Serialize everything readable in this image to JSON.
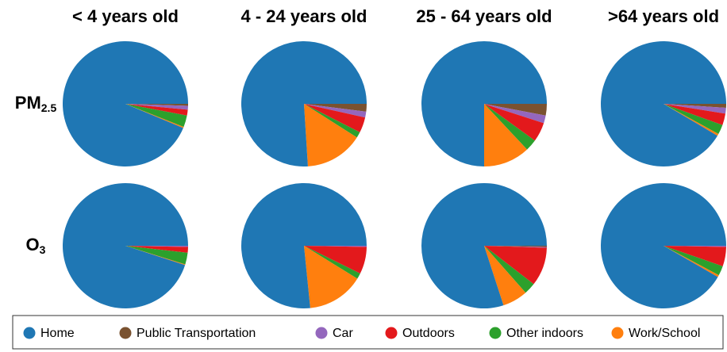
{
  "chart_data": {
    "type": "pie",
    "columns": [
      "< 4 years old",
      "4 - 24 years old",
      "25 - 64 years old",
      ">64 years old"
    ],
    "rows": [
      {
        "text": "PM",
        "sub": "2.5"
      },
      {
        "text": "O",
        "sub": "3"
      }
    ],
    "categories": [
      "Home",
      "Public Transportation",
      "Car",
      "Outdoors",
      "Other indoors",
      "Work/School"
    ],
    "colors": [
      "#1f77b4",
      "#7a5230",
      "#9467bd",
      "#e3191c",
      "#2ca02c",
      "#ff7f0e"
    ],
    "values": [
      [
        [
          93.7,
          0.5,
          1,
          1.5,
          3,
          0.3
        ],
        [
          76,
          2,
          1.5,
          4,
          1.5,
          15
        ],
        [
          75,
          3,
          2,
          5,
          3,
          12
        ],
        [
          91.5,
          1,
          1.5,
          3,
          2.5,
          0.5
        ]
      ],
      [
        [
          95,
          0,
          0.3,
          1.5,
          3,
          0.2
        ],
        [
          76.6,
          0,
          0.3,
          7,
          1.5,
          14.6
        ],
        [
          80,
          0.3,
          0.2,
          10,
          3,
          6.5
        ],
        [
          91.7,
          0,
          0.3,
          5,
          2.5,
          0.5
        ]
      ]
    ]
  }
}
